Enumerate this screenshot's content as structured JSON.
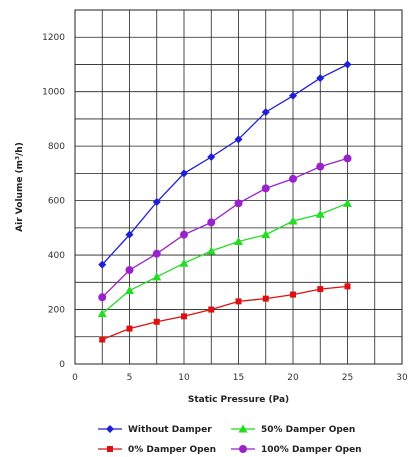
{
  "chart_data": {
    "type": "line",
    "title": "",
    "xlabel": "Static Pressure (Pa)",
    "ylabel": "Air Volume (m³/h)",
    "xlim": [
      0,
      30
    ],
    "ylim": [
      0,
      1300
    ],
    "x_ticks": [
      0,
      5,
      10,
      15,
      20,
      25,
      30
    ],
    "y_ticks": [
      0,
      200,
      400,
      600,
      800,
      1000,
      1200
    ],
    "grid": true,
    "legend_position": "bottom",
    "x": [
      2.5,
      5,
      7.5,
      10,
      12.5,
      15,
      17.5,
      20,
      22.5,
      25
    ],
    "series": [
      {
        "name": "Without Damper",
        "color": "#1f1fd6",
        "marker": "diamond",
        "values": [
          365,
          475,
          595,
          700,
          760,
          825,
          925,
          985,
          1050,
          1100
        ]
      },
      {
        "name": "50% Damper Open",
        "color": "#22dd22",
        "marker": "triangle",
        "values": [
          185,
          270,
          320,
          370,
          415,
          450,
          475,
          525,
          550,
          590
        ]
      },
      {
        "name": "0% Damper Open",
        "color": "#dd1111",
        "marker": "square",
        "values": [
          90,
          130,
          155,
          175,
          200,
          230,
          240,
          255,
          275,
          285
        ]
      },
      {
        "name": "100% Damper Open",
        "color": "#9a22cc",
        "marker": "circle",
        "values": [
          245,
          345,
          405,
          475,
          520,
          590,
          645,
          680,
          725,
          755
        ]
      }
    ]
  }
}
